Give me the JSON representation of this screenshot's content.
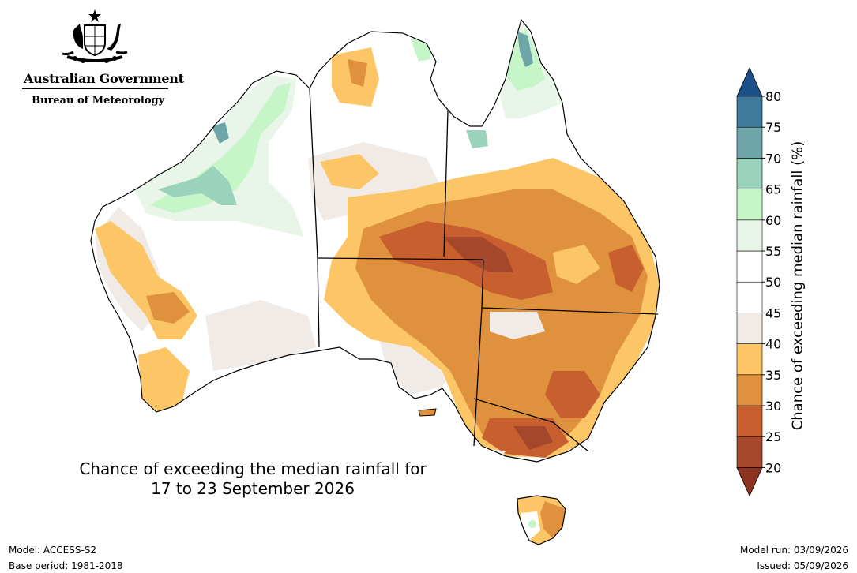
{
  "header": {
    "government": "Australian Government",
    "agency": "Bureau of Meteorology"
  },
  "map": {
    "title_line1": "Chance of exceeding the median rainfall for",
    "title_line2": "17 to 23 September 2026",
    "region": "Australia"
  },
  "legend": {
    "label": "Chance of exceeding median rainfall (%)",
    "ticks": [
      "20",
      "25",
      "30",
      "35",
      "40",
      "45",
      "50",
      "55",
      "60",
      "65",
      "70",
      "75",
      "80"
    ],
    "bands": [
      {
        "color": "#a5472a"
      },
      {
        "color": "#c75f2f"
      },
      {
        "color": "#e0913d"
      },
      {
        "color": "#fcc566"
      },
      {
        "color": "#f0ebe6"
      },
      {
        "color": "#ffffff"
      },
      {
        "color": "#ffffff"
      },
      {
        "color": "#e8f5e8"
      },
      {
        "color": "#c6f5c8"
      },
      {
        "color": "#9bd2bb"
      },
      {
        "color": "#6ea5a9"
      },
      {
        "color": "#3f7a9c"
      }
    ],
    "under_color": "#8c3420",
    "over_color": "#1c5088"
  },
  "footer": {
    "model": "Model: ACCESS-S2",
    "base_period": "Base period: 1981-2018",
    "model_run": "Model run: 03/09/2026",
    "issued": "Issued: 05/09/2026"
  }
}
